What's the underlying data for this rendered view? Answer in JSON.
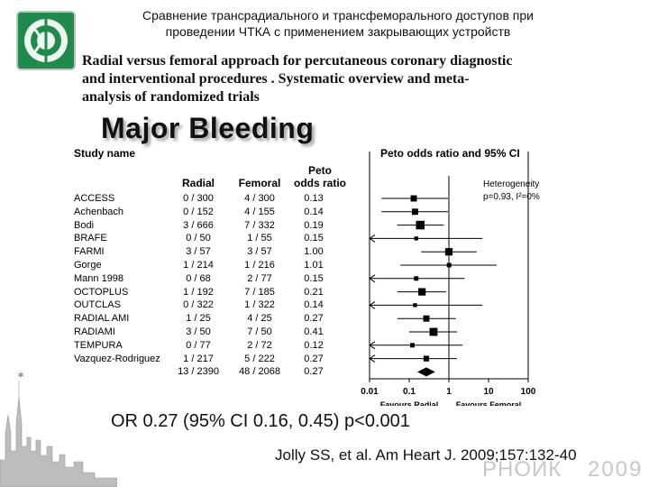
{
  "header": {
    "russian_title_line1": "Сравнение трансрадиального и трансфеморального доступов при",
    "russian_title_line2": "проведении ЧТКА с применением закрывающих устройств",
    "english_title_line1": "Radial versus femoral approach for percutaneous coronary diagnostic",
    "english_title_line2": "and interventional procedures . Systematic overview and meta-",
    "english_title_line3": "analysis of randomized trials"
  },
  "slide_heading": "Major Bleeding",
  "table": {
    "study_name_header": "Study name",
    "col_radial": "Radial",
    "col_femoral": "Femoral",
    "col_odds_line1": "Peto",
    "col_odds_line2": "odds ratio",
    "plot_header": "Peto odds ratio and 95% CI"
  },
  "chart_data": {
    "type": "forest",
    "x_scale": "log",
    "xlim": [
      0.01,
      100
    ],
    "x_ticks": [
      0.01,
      0.1,
      1,
      10,
      100
    ],
    "x_tick_labels": [
      "0.01",
      "0.1",
      "1",
      "10",
      "100"
    ],
    "left_label": "Favours Radial",
    "right_label": "Favours Femoral",
    "heterogeneity_line1": "Heterogeneity",
    "heterogeneity_line2": "p=0.93, I²=0%",
    "studies": [
      {
        "name": "ACCESS",
        "radial": "0 / 300",
        "femoral": "4 / 300",
        "or": "0.13",
        "value": 0.13,
        "lo": 0.02,
        "hi": 0.95,
        "weight": 3,
        "arrow": false
      },
      {
        "name": "Achenbach",
        "radial": "0 / 152",
        "femoral": "4 / 155",
        "or": "0.14",
        "value": 0.14,
        "lo": 0.02,
        "hi": 0.95,
        "weight": 3,
        "arrow": false
      },
      {
        "name": "Bodi",
        "radial": "3 / 666",
        "femoral": "7 / 332",
        "or": "0.19",
        "value": 0.19,
        "lo": 0.05,
        "hi": 0.75,
        "weight": 5,
        "arrow": false
      },
      {
        "name": "BRAFE",
        "radial": "0 / 50",
        "femoral": "1 / 55",
        "or": "0.15",
        "value": 0.15,
        "lo": 0.005,
        "hi": 7,
        "weight": 1,
        "arrow": true
      },
      {
        "name": "FARMI",
        "radial": "3 / 57",
        "femoral": "3 / 57",
        "or": "1.00",
        "value": 1.0,
        "lo": 0.2,
        "hi": 5,
        "weight": 4,
        "arrow": false
      },
      {
        "name": "Gorge",
        "radial": "1 / 214",
        "femoral": "1 / 216",
        "or": "1.01",
        "value": 1.01,
        "lo": 0.06,
        "hi": 16,
        "weight": 1.5,
        "arrow": false
      },
      {
        "name": "Mann 1998",
        "radial": "0 / 68",
        "femoral": "2 / 77",
        "or": "0.15",
        "value": 0.15,
        "lo": 0.005,
        "hi": 2.5,
        "weight": 1.5,
        "arrow": true
      },
      {
        "name": "OCTOPLUS",
        "radial": "1 / 192",
        "femoral": "7 / 185",
        "or": "0.21",
        "value": 0.21,
        "lo": 0.05,
        "hi": 0.85,
        "weight": 4,
        "arrow": false
      },
      {
        "name": "OUTCLAS",
        "radial": "0 / 322",
        "femoral": "1 / 322",
        "or": "0.14",
        "value": 0.14,
        "lo": 0.005,
        "hi": 7,
        "weight": 1,
        "arrow": true
      },
      {
        "name": "RADIAL AMI",
        "radial": "1 / 25",
        "femoral": "4 / 25",
        "or": "0.27",
        "value": 0.27,
        "lo": 0.05,
        "hi": 1.5,
        "weight": 3,
        "arrow": false
      },
      {
        "name": "RADIAMI",
        "radial": "3 / 50",
        "femoral": "7 / 50",
        "or": "0.41",
        "value": 0.41,
        "lo": 0.1,
        "hi": 1.6,
        "weight": 4.5,
        "arrow": false
      },
      {
        "name": "TEMPURA",
        "radial": "0 / 77",
        "femoral": "2 / 72",
        "or": "0.12",
        "value": 0.12,
        "lo": 0.005,
        "hi": 2.2,
        "weight": 1.5,
        "arrow": true
      },
      {
        "name": "Vazquez-Rodriguez",
        "radial": "1 / 217",
        "femoral": "5 / 222",
        "or": "0.27",
        "value": 0.27,
        "lo": 0.04,
        "hi": 1.6,
        "weight": 2.5,
        "arrow": true
      }
    ],
    "overall": {
      "radial": "13 / 2390",
      "femoral": "48 / 2068",
      "or": "0.27",
      "value": 0.27,
      "lo": 0.16,
      "hi": 0.45
    }
  },
  "summary_text": "OR 0.27 (95% CI 0.16, 0.45) p<0.001",
  "citation": "Jolly SS, et al.  Am Heart J. 2009;157:132-40",
  "footer": {
    "brand": "РНОИК",
    "year": "2009"
  },
  "colors": {
    "logo_green": "#1f8a4c",
    "logo_bg": "#1f8a4c",
    "footer_grey": "#c8c8c8"
  }
}
